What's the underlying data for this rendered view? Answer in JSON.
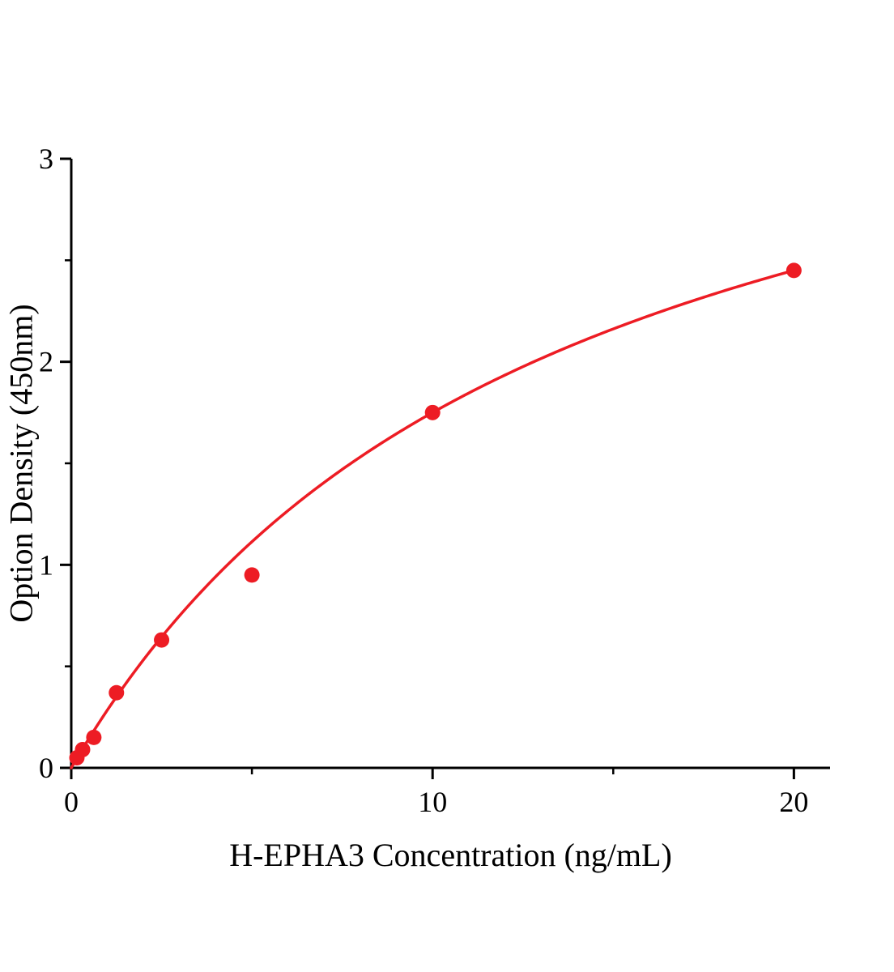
{
  "chart_data": {
    "type": "scatter",
    "title": "",
    "xlabel": "H-EPHA3 Concentration（ng/mL）",
    "ylabel": "Option Density（450nm）",
    "x": [
      0.156,
      0.313,
      0.625,
      1.25,
      2.5,
      5,
      10,
      20
    ],
    "y": [
      0.05,
      0.09,
      0.15,
      0.37,
      0.63,
      0.95,
      1.75,
      2.45
    ],
    "xlim": [
      0,
      21
    ],
    "ylim": [
      0,
      3
    ],
    "x_major_ticks": [
      0,
      10,
      20
    ],
    "x_minor_ticks": [
      5,
      15
    ],
    "y_major_ticks": [
      0,
      1,
      2,
      3
    ],
    "y_minor_ticks": [
      0.5,
      1.5,
      2.5
    ],
    "grid": false,
    "legend": "none",
    "marker_color": "#ed1c24",
    "curve_color": "#ed1c24",
    "axis_color": "#000000",
    "fit": {
      "type": "saturation-binding",
      "a": 4.083,
      "km": 13.33
    }
  }
}
